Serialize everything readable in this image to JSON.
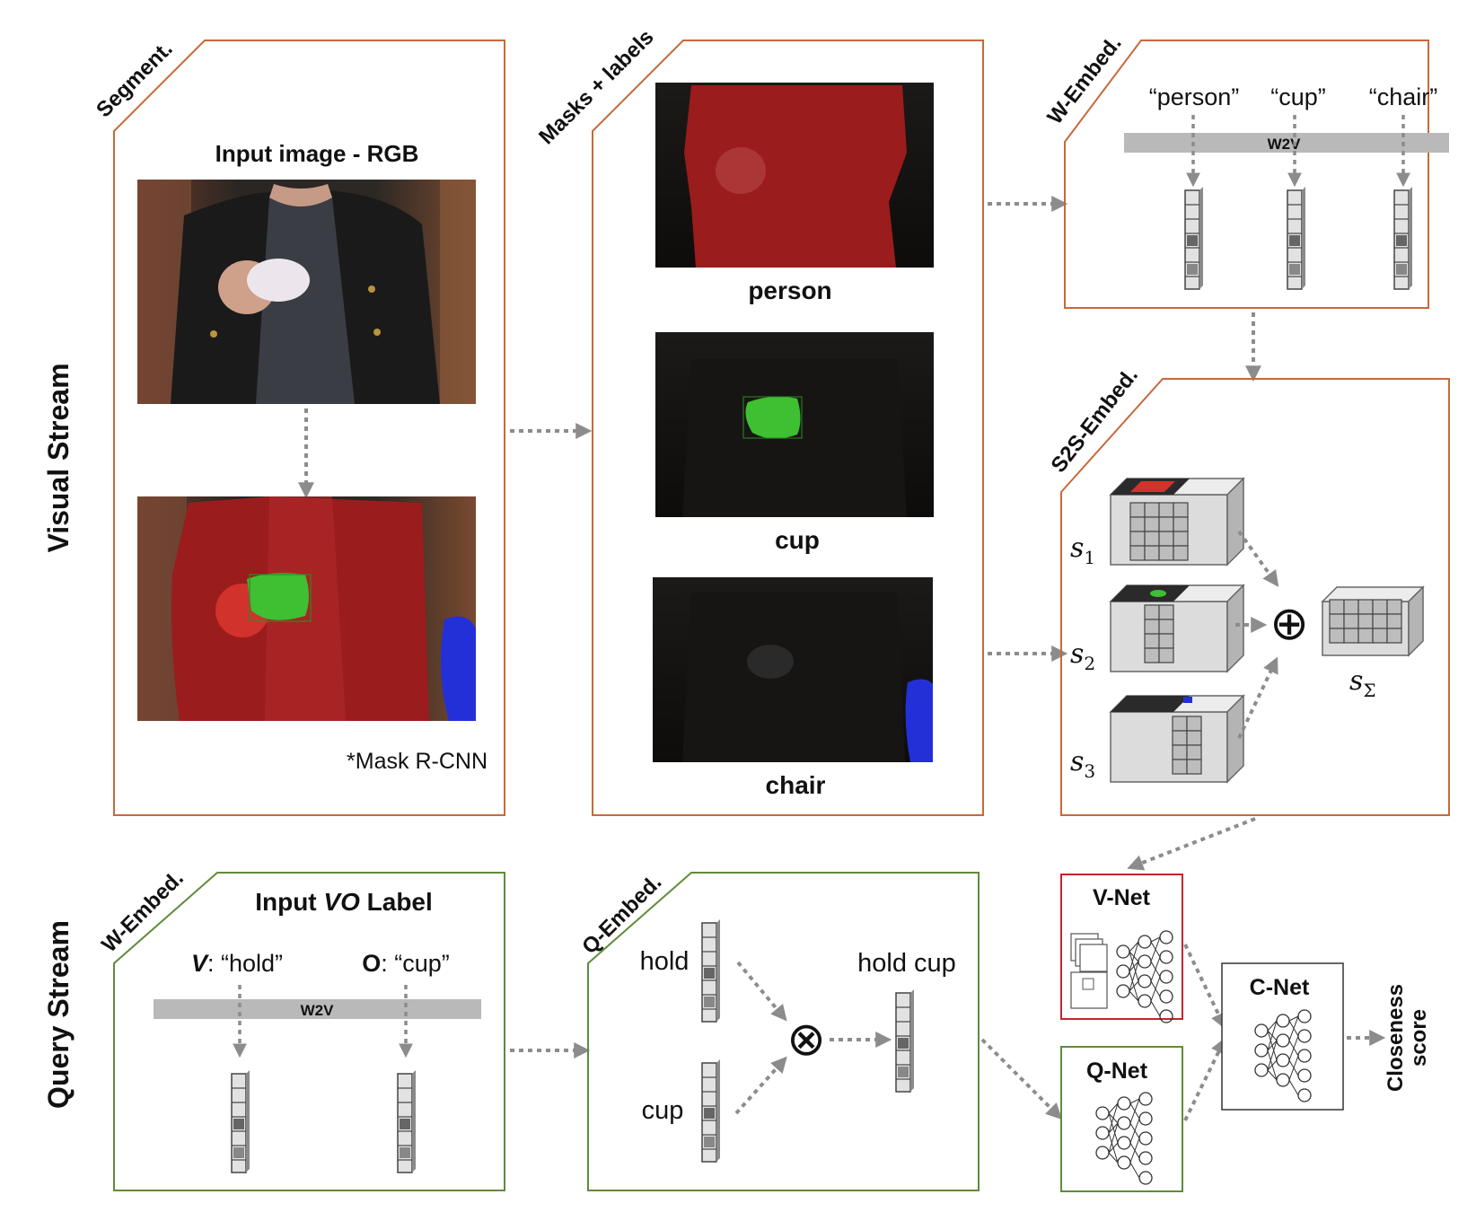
{
  "stream_labels": {
    "visual": "Visual Stream",
    "query": "Query Stream"
  },
  "colors": {
    "visual_frame": "#c8693a",
    "query_frame": "#5f8c3c",
    "vnet_frame": "#c0282d",
    "arrow": "#8c8c8c",
    "w2v_bar": "#b9b9b9",
    "person_mask": "#9b1c1c",
    "cup_mask": "#3fbf32",
    "chair_mask": "#2330d8"
  },
  "segment": {
    "tag": "Segment.",
    "title": "Input image - RGB",
    "footnote": "*Mask R-CNN"
  },
  "masks": {
    "tag": "Masks + labels",
    "labels": [
      "person",
      "cup",
      "chair"
    ]
  },
  "w_embed_visual": {
    "tag": "W-Embed.",
    "words": [
      "“person”",
      "“cup”",
      "“chair”"
    ],
    "bar_label": "W2V"
  },
  "s2s": {
    "tag": "S2S-Embed.",
    "s1": "s",
    "s1_sub": "1",
    "s2": "s",
    "s2_sub": "2",
    "s3": "s",
    "s3_sub": "3",
    "ssum": "s",
    "ssum_sub": "Σ",
    "oplus": "⊕"
  },
  "w_embed_query": {
    "tag": "W-Embed.",
    "title_pre": "Input ",
    "title_em": "VO",
    "title_post": " Label",
    "verb_key": "V",
    "verb_val": ": “hold”",
    "obj_key": "O",
    "obj_val": ": “cup”",
    "bar_label": "W2V"
  },
  "q_embed": {
    "tag": "Q-Embed.",
    "word1": "hold",
    "word2": "cup",
    "combined": "hold cup",
    "otimes": "⊗"
  },
  "nets": {
    "vnet": "V-Net",
    "qnet": "Q-Net",
    "cnet": "C-Net",
    "output_line1": "Closeness",
    "output_line2": "score"
  }
}
